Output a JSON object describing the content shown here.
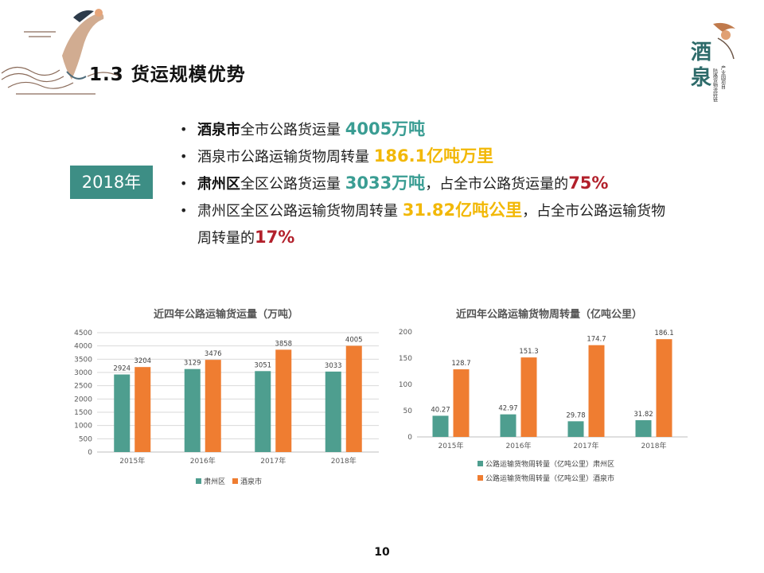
{
  "slide": {
    "title": "1.3 货运规模优势",
    "year_label": "2018年",
    "page_number": "10"
  },
  "brand": {
    "logo_text": "酒泉",
    "slogan_lines": [
      "产业园项目",
      "陆路货物流转链"
    ]
  },
  "bullets": [
    {
      "parts": [
        {
          "text": "酒泉市",
          "style": "bold"
        },
        {
          "text": "全市公路货运量 ",
          "style": "normal"
        },
        {
          "text": "4005万吨",
          "style": "teal"
        }
      ]
    },
    {
      "parts": [
        {
          "text": "酒泉市公路运输货物周转量  ",
          "style": "normal"
        },
        {
          "text": "186.1亿吨万里",
          "style": "gold"
        }
      ]
    },
    {
      "parts": [
        {
          "text": "肃州区",
          "style": "bold"
        },
        {
          "text": "全区公路货运量 ",
          "style": "normal"
        },
        {
          "text": "3033万吨",
          "style": "teal"
        },
        {
          "text": "，占全市公路货运量的",
          "style": "normal"
        },
        {
          "text": "75%",
          "style": "red"
        }
      ]
    },
    {
      "parts": [
        {
          "text": "肃州区全区公路运输货物周转量 ",
          "style": "normal"
        },
        {
          "text": "31.82亿吨公里",
          "style": "gold"
        },
        {
          "text": "，占全市公路运输货物",
          "style": "normal"
        }
      ]
    },
    {
      "parts": [
        {
          "text": "周转量的",
          "style": "normal"
        },
        {
          "text": "17%",
          "style": "red"
        }
      ],
      "continuation": true
    }
  ],
  "colors": {
    "teal": "#4e9e8f",
    "orange": "#ef7d31",
    "year_box": "#3d8e85",
    "highlight_teal": "#3a9d93",
    "highlight_gold": "#f2b807",
    "highlight_red": "#b2202b"
  },
  "chart_data": [
    {
      "type": "bar",
      "title": "近四年公路运输货运量（万吨）",
      "categories": [
        "2015年",
        "2016年",
        "2017年",
        "2018年"
      ],
      "series": [
        {
          "name": "肃州区",
          "values": [
            2924,
            3129,
            3051,
            3033
          ],
          "color": "#4e9e8f"
        },
        {
          "name": "酒泉市",
          "values": [
            3204,
            3476,
            3858,
            4005
          ],
          "color": "#ef7d31"
        }
      ],
      "yticks": [
        0,
        500,
        1000,
        1500,
        2000,
        2500,
        3000,
        3500,
        4000,
        4500
      ],
      "ylim": [
        0,
        4500
      ],
      "grid": true,
      "legend": "bottom",
      "value_labels": true
    },
    {
      "type": "bar",
      "title": "近四年公路运输货物周转量（亿吨公里）",
      "categories": [
        "2015年",
        "2016年",
        "2017年",
        "2018年"
      ],
      "series": [
        {
          "name": "公路运输货物周转量（亿吨公里）肃州区",
          "values": [
            40.27,
            42.97,
            29.78,
            31.82
          ],
          "color": "#4e9e8f"
        },
        {
          "name": "公路运输货物周转量（亿吨公里）酒泉市",
          "values": [
            128.7,
            151.3,
            174.7,
            186.1
          ],
          "color": "#ef7d31"
        }
      ],
      "yticks": [
        0,
        50,
        100,
        150,
        200
      ],
      "ylim": [
        0,
        200
      ],
      "grid": false,
      "legend": "bottom",
      "value_labels": true
    }
  ]
}
